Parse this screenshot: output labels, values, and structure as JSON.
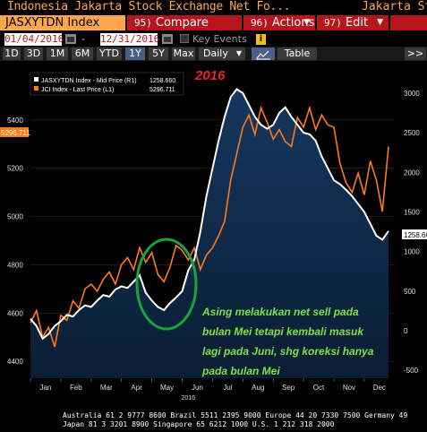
{
  "window": {
    "title": "Indonesia Jakarta Stock Exchange Net Fo...",
    "title_right": "Jakarta St"
  },
  "menu": {
    "ticker": "JASXYTDN Index",
    "compare_num": "95)",
    "compare_label": "Compare",
    "actions_num": "96)",
    "actions_label": "Actions",
    "edit_num": "97)",
    "edit_label": "Edit"
  },
  "dates": {
    "start": "01/04/2016",
    "separator": "-",
    "end": "12/31/2016",
    "key_events": "Key Events",
    "info": "i"
  },
  "range_buttons": [
    "1D",
    "3D",
    "1M",
    "6M",
    "YTD",
    "1Y",
    "5Y",
    "Max"
  ],
  "active_range": "1Y",
  "frequency": "Daily",
  "table_label": "Table",
  "expand_label": ">>",
  "colors": {
    "orange": "#ff7a1a",
    "white_line": "#ffffff",
    "fill": "#10243f",
    "annotation": "#7ee04a",
    "circle": "#1aa33a",
    "red": "#e8262a",
    "bg": "#000000"
  },
  "chart_data": {
    "type": "line",
    "year_label": "2016",
    "legend": [
      {
        "label": "JASXYTDN Index - Mid Price (R1)",
        "value": "1258.660",
        "color": "#ffffff"
      },
      {
        "label": "JCI Index - Last Price (L1)",
        "value": "5296.711",
        "color": "#ff7a1a"
      }
    ],
    "x_ticks": [
      "Jan",
      "Feb",
      "Mar",
      "Apr",
      "May",
      "Jun",
      "Jul",
      "Aug",
      "Sep",
      "Oct",
      "Nov",
      "Dec"
    ],
    "x_year": "2016",
    "left_axis": {
      "ticks": [
        4400,
        4600,
        4800,
        5000,
        5200,
        5400
      ],
      "range": [
        4330,
        5570
      ]
    },
    "right_axis": {
      "ticks": [
        -500,
        0,
        500,
        1000,
        1500,
        2000,
        2500,
        3000
      ],
      "range": [
        -600,
        3180
      ]
    },
    "left_last_label": "5296.711",
    "right_last_label": "1258.66",
    "jci_series": {
      "name": "JCI Index",
      "x": [
        0,
        0.2,
        0.4,
        0.6,
        0.8,
        1,
        1.2,
        1.4,
        1.6,
        1.8,
        2,
        2.2,
        2.4,
        2.6,
        2.8,
        3,
        3.2,
        3.4,
        3.6,
        3.8,
        4,
        4.2,
        4.4,
        4.6,
        4.8,
        5,
        5.2,
        5.4,
        5.6,
        5.8,
        6,
        6.2,
        6.4,
        6.6,
        6.8,
        7,
        7.2,
        7.4,
        7.6,
        7.8,
        8,
        8.2,
        8.4,
        8.6,
        8.8,
        9,
        9.2,
        9.4,
        9.6,
        9.8,
        10,
        10.2,
        10.4,
        10.6,
        10.8,
        11,
        11.2,
        11.4,
        11.6,
        11.8
      ],
      "values": [
        4560,
        4610,
        4500,
        4540,
        4460,
        4590,
        4570,
        4650,
        4620,
        4700,
        4720,
        4690,
        4740,
        4770,
        4720,
        4800,
        4830,
        4780,
        4870,
        4810,
        4850,
        4760,
        4730,
        4790,
        4880,
        4860,
        4820,
        4870,
        4780,
        4840,
        4870,
        4920,
        4980,
        5150,
        5260,
        5370,
        5420,
        5340,
        5450,
        5390,
        5320,
        5360,
        5310,
        5290,
        5410,
        5370,
        5450,
        5360,
        5420,
        5380,
        5370,
        5220,
        5140,
        5100,
        5180,
        5090,
        5230,
        5150,
        5020,
        5290
      ]
    },
    "foreign_series": {
      "name": "JASXYTDN Index",
      "x": [
        0,
        0.2,
        0.4,
        0.6,
        0.8,
        1,
        1.2,
        1.4,
        1.6,
        1.8,
        2,
        2.2,
        2.4,
        2.6,
        2.8,
        3,
        3.2,
        3.4,
        3.6,
        3.8,
        4,
        4.2,
        4.4,
        4.6,
        4.8,
        5,
        5.2,
        5.4,
        5.6,
        5.8,
        6,
        6.2,
        6.4,
        6.6,
        6.8,
        7,
        7.2,
        7.4,
        7.6,
        7.8,
        8,
        8.2,
        8.4,
        8.6,
        8.8,
        9,
        9.2,
        9.4,
        9.6,
        9.8,
        10,
        10.2,
        10.4,
        10.6,
        10.8,
        11,
        11.2,
        11.4,
        11.6,
        11.8
      ],
      "values": [
        150,
        60,
        -100,
        -40,
        60,
        120,
        200,
        180,
        260,
        320,
        300,
        380,
        450,
        430,
        520,
        560,
        540,
        620,
        700,
        480,
        380,
        300,
        260,
        350,
        420,
        500,
        760,
        900,
        1250,
        1700,
        2050,
        2400,
        2700,
        2950,
        3050,
        3000,
        2850,
        2700,
        2600,
        2550,
        2600,
        2750,
        2820,
        2700,
        2600,
        2500,
        2480,
        2400,
        2200,
        2050,
        1900,
        1850,
        1780,
        1700,
        1600,
        1500,
        1350,
        1200,
        1150,
        1258.66
      ]
    },
    "annotation": "Asing melakukan net sell pada bulan Mei tetapi kembali masuk lagi pada Juni, shg koreksi hanya pada bulan Mei"
  },
  "footer": {
    "line1": "Australia 61 2 9777 8600 Brazil 5511 2395 9000 Europe 44 20 7330 7500 Germany 49",
    "line2": "Japan 81 3 3201 8900          Singapore 65 6212 1000     U.S. 1 212 318 2000"
  }
}
